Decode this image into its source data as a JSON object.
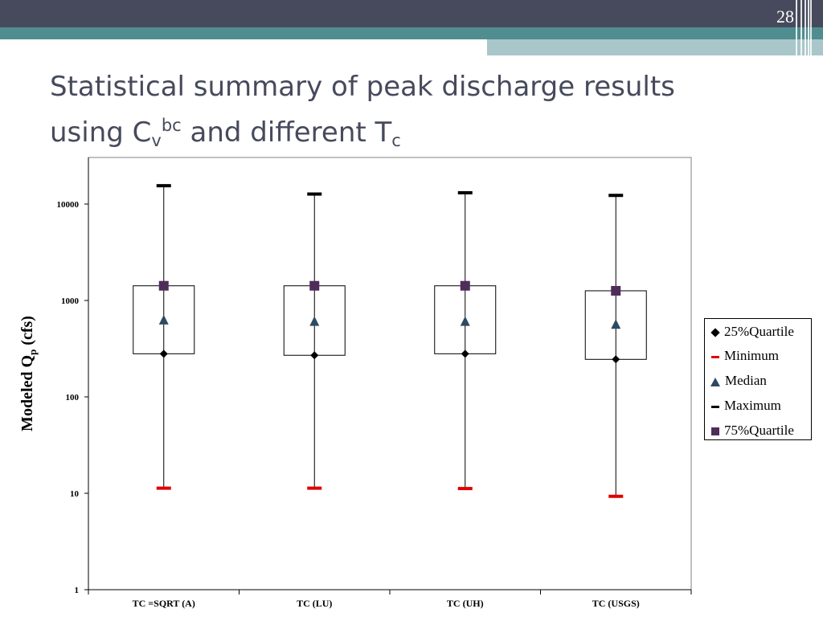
{
  "slide": {
    "number": "28",
    "title_line1": "Statistical summary of peak discharge results",
    "title_line2_prefix": "using C",
    "title_sub_v": "v",
    "title_sup_bc": "bc",
    "title_line2_mid": " and different T",
    "title_sub_c": "c"
  },
  "colors": {
    "header_dark": "#464a5c",
    "header_teal": "#4f8d90",
    "header_light": "#a9c6ca",
    "minimum": "#e00000",
    "maximum": "#000000",
    "median": "#2d4a63",
    "quartile75": "#4f2d5a",
    "quartile25": "#000000"
  },
  "chart_data": {
    "type": "box",
    "scale": "log",
    "ylim": [
      1,
      20000
    ],
    "ylabel": "Modeled Q",
    "ylabel_sub": "p",
    "ylabel_suffix": " (cfs)",
    "yticks": [
      1,
      10,
      100,
      1000,
      10000
    ],
    "ytick_labels": [
      "1",
      "10",
      "100",
      "1000",
      "10000"
    ],
    "categories": [
      "TC =SQRT (A)",
      "TC (LU)",
      "TC (UH)",
      "TC (USGS)"
    ],
    "series": [
      {
        "name": "25%Quartile",
        "marker": "diamond",
        "values": [
          280,
          270,
          280,
          245
        ]
      },
      {
        "name": "Minimum",
        "marker": "dash",
        "values": [
          11.3,
          11.3,
          11.2,
          9.3
        ]
      },
      {
        "name": "Median",
        "marker": "triangle",
        "values": [
          620,
          600,
          600,
          560
        ]
      },
      {
        "name": "Maximum",
        "marker": "dash",
        "values": [
          15500,
          12700,
          13100,
          12300
        ]
      },
      {
        "name": "75%Quartile",
        "marker": "square",
        "values": [
          1420,
          1420,
          1420,
          1260
        ]
      }
    ],
    "grid": false,
    "legend_position": "right"
  }
}
